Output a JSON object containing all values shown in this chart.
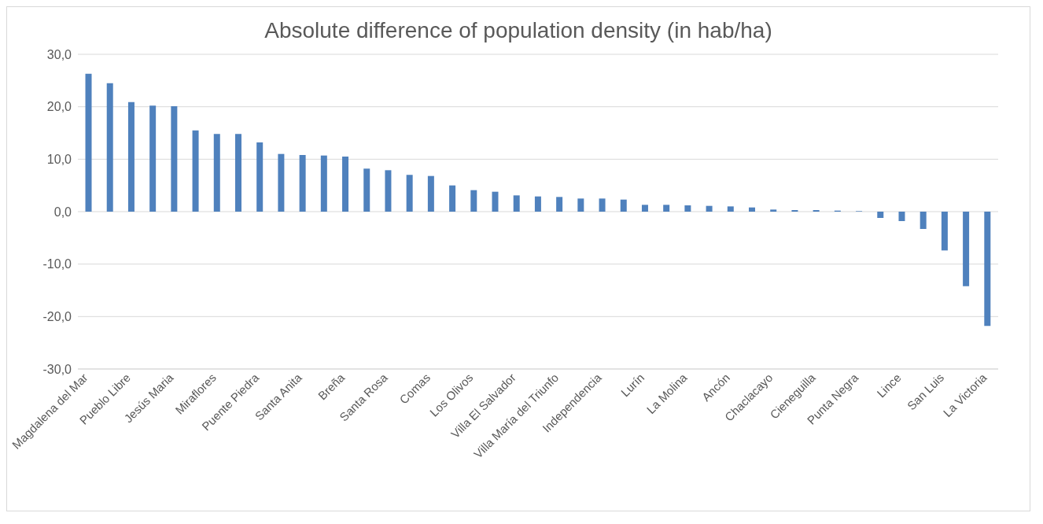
{
  "chart_data": {
    "type": "bar",
    "title": "Absolute difference of population density (in hab/ha)",
    "categories": [
      "Magdalena del Mar",
      null,
      "Pueblo Libre",
      null,
      "Jesús Maria",
      null,
      "Miraflores",
      null,
      "Puente Piedra",
      null,
      "Santa Anita",
      null,
      "Breña",
      null,
      "Santa Rosa",
      null,
      "Comas",
      null,
      "Los Olivos",
      null,
      "Villa El Salvador",
      null,
      "Villa María del Triunfo",
      null,
      "Independencia",
      null,
      "Lurín",
      null,
      "La Molina",
      null,
      "Ancón",
      null,
      "Chaclacayo",
      null,
      "Cieneguilla",
      null,
      "Punta Negra",
      null,
      "Lince",
      null,
      "San Luis",
      null,
      "La Victoria"
    ],
    "values": [
      26.3,
      24.5,
      20.9,
      20.2,
      20.1,
      15.5,
      14.8,
      14.8,
      13.2,
      11.0,
      10.8,
      10.7,
      10.5,
      8.2,
      7.9,
      7.0,
      6.8,
      5.0,
      4.1,
      3.8,
      3.1,
      2.9,
      2.8,
      2.5,
      2.5,
      2.3,
      1.3,
      1.3,
      1.2,
      1.1,
      1.0,
      0.8,
      0.4,
      0.3,
      0.3,
      0.2,
      0.1,
      -1.2,
      -1.8,
      -3.3,
      -7.4,
      -14.2,
      -21.8
    ],
    "color": "#4f81bd",
    "ylim": [
      -30,
      30
    ],
    "yticks": [
      {
        "value": -30,
        "label": "-30,0"
      },
      {
        "value": -20,
        "label": "-20,0"
      },
      {
        "value": -10,
        "label": "-10,0"
      },
      {
        "value": 0,
        "label": "0,0"
      },
      {
        "value": 10,
        "label": "10,0"
      },
      {
        "value": 20,
        "label": "20,0"
      },
      {
        "value": 30,
        "label": "30,0"
      }
    ],
    "grid": "y",
    "legend": false
  }
}
